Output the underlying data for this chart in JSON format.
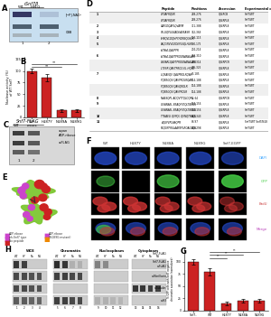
{
  "background_color": "#ffffff",
  "panel_B": {
    "categories": [
      "WT",
      "H187Y",
      "N189A",
      "N189G"
    ],
    "values": [
      100,
      85,
      15,
      15
    ],
    "errors": [
      5,
      8,
      3,
      3
    ],
    "bar_color": "#cc2222",
    "ylabel": "Nuclease activity (%)\nof WT Snf7",
    "ylim": [
      0,
      130
    ],
    "yticks": [
      0,
      25,
      50,
      75,
      100,
      125
    ]
  },
  "panel_G": {
    "categories": [
      "Snf7-\nEGFP",
      "WT",
      "H187Y",
      "N188A",
      "N189G"
    ],
    "values": [
      100,
      80,
      15,
      20,
      20
    ],
    "errors": [
      5,
      7,
      3,
      4,
      4
    ],
    "bar_color": "#cc2222",
    "ylabel": "% GFP cells with Snf7 negative\nchromatin association (normalized)",
    "ylim": [
      0,
      130
    ],
    "yticks": [
      0,
      25,
      50,
      75,
      100
    ]
  },
  "panel_D_headers": [
    "",
    "Peptide",
    "Positions",
    "Accession",
    "Experimental condition"
  ],
  "panel_D_rows": [
    [
      "1",
      "GTVAFRQSR",
      "268-276",
      "Q84RCB",
      "Snf7/WT"
    ],
    [
      "",
      "GTVAFRQSR",
      "268-276",
      "Q84RPL8",
      "Snf7/WT"
    ],
    [
      "2",
      "GAPLDQAPLQVAPIR",
      "311-388",
      "Q84RPL8",
      "Snf7/WT"
    ],
    [
      "3",
      "STLGQPLGNADEAVEASR",
      "352-369",
      "Q84RPL8",
      "Snf7/WT"
    ],
    [
      "4",
      "LHBQVLDQHPYHDRSQLHLR",
      "126-115",
      "Q84RPL8",
      "Snf7/WT"
    ],
    [
      "5",
      "LAQGNVVGEDEPLSQLHLR",
      "160-175",
      "Q84RPL8",
      "Snf7/WT"
    ],
    [
      "",
      "LVYAVLQAVFPR",
      "204-214",
      "Q84RPL8",
      "Snf7/WT"
    ],
    [
      "6",
      "LVYAVLQAVTPROGNANALAIR",
      "263-310",
      "Q84RPL8",
      "Snf7/WT"
    ],
    [
      "",
      "CHVARLQAVTPROGNANALAIRL HQSK",
      "265-314",
      "Q84RPCR",
      "Snf7/WT"
    ],
    [
      "",
      "LTVSR QAVTPROG EL HQSK SBER",
      "235-325",
      "Q84RPL8",
      "Snf7/WT"
    ],
    [
      "7",
      "LQEAVQV QAVPROLRQAR",
      "75-185",
      "Q84RPL8",
      "Snf7/WT"
    ],
    [
      "",
      "PQBEGQV QAVPROLRQAR",
      "114-188",
      "Q84RPL8",
      "Snf7/WT"
    ],
    [
      "",
      "PQBEGQV QAVQROLR",
      "114-188",
      "Q84RPL8",
      "Snf7/WT"
    ],
    [
      "",
      "PQBEGQV QAVPROLR",
      "114-188",
      "Q84RPL8",
      "Snf7/WT"
    ],
    [
      "8",
      "NAESQPL ADQVTTQLDQR",
      "44-64",
      "Q84RPCB",
      "Snf7/WT"
    ],
    [
      "9",
      "GVANAEL BEAQFSTQLTBEGSTTR",
      "134-156",
      "Q84RPL8",
      "Snf7/WT"
    ],
    [
      "",
      "GVANAEL BEAQFSTQLTBEGSTTR",
      "134-156",
      "Q84RPL8",
      "Snf7/WT"
    ],
    [
      "10",
      "TTNAEG QVPQL QVNQTNAQL QPR",
      "324-343",
      "Q84RPL8",
      "Snf7/WT"
    ],
    [
      "11",
      "AQGPVPLAAQPR",
      "86-97",
      "Q84RPL8",
      "Snf7/WT Snf7/N189G"
    ],
    [
      "",
      "REQGPFRSLAAPEPLROAGSQSBGHER",
      "268-298",
      "Q84RPL8",
      "Snf7/WT"
    ]
  ],
  "colors": {
    "dark_red": "#cc2222",
    "blue": "#4466aa",
    "cyan": "#44aacc",
    "green": "#44bb44",
    "red": "#cc3333",
    "magenta": "#cc44cc",
    "dark_gray": "#333333",
    "light_gray": "#eeeeee",
    "table_gray": "#e8e8e8",
    "black": "#000000",
    "white": "#ffffff",
    "blot_bg": "#c8c8c8",
    "blot_band": "#222222"
  },
  "panel_F_cols": [
    "WT",
    "H187Y",
    "N188A",
    "N189G",
    "Snf7-EGFP"
  ],
  "panel_F_rows": [
    "DAPI",
    "GFP",
    "BrdU",
    "Merge"
  ],
  "panel_F_row_colors": [
    "#44aaff",
    "#44cc44",
    "#cc4444",
    "#bb44bb"
  ],
  "panel_H_sections": [
    "WCE",
    "Chromatin",
    "Nucleoplasm",
    "Cytoplasm"
  ],
  "panel_H_labels": [
    "Snf7-FLAG\na-FLAG",
    "a-Fibrillarin",
    "a-Tubulin",
    "a-H3"
  ],
  "panel_H_lane_labels": [
    "WT",
    "HY",
    "Na",
    "NG"
  ]
}
